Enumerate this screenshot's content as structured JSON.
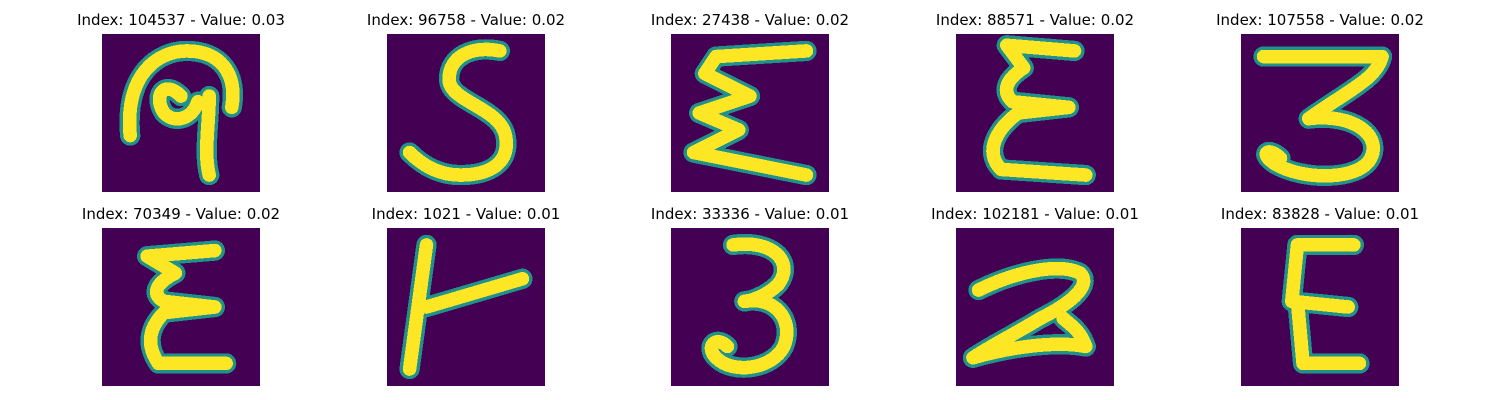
{
  "figure": {
    "background": "#ffffff",
    "colormap": "viridis",
    "colors": {
      "low": "#440154",
      "mid": "#21918c",
      "high": "#fde725"
    },
    "grid": {
      "rows": 2,
      "cols": 5
    },
    "axes": "off"
  },
  "panels": [
    {
      "title": "Index: 104537 - Value: 0.03",
      "glyph": "handwritten-p-shape"
    },
    {
      "title": "Index: 96758 - Value: 0.02",
      "glyph": "handwritten-s"
    },
    {
      "title": "Index: 27438 - Value: 0.02",
      "glyph": "handwritten-sigma"
    },
    {
      "title": "Index: 88571 - Value: 0.02",
      "glyph": "handwritten-epsilon"
    },
    {
      "title": "Index: 107558 - Value: 0.02",
      "glyph": "handwritten-3"
    },
    {
      "title": "Index: 70349 - Value: 0.02",
      "glyph": "handwritten-epsilon"
    },
    {
      "title": "Index: 1021 - Value: 0.01",
      "glyph": "handwritten-t-sideways"
    },
    {
      "title": "Index: 33336 - Value: 0.01",
      "glyph": "handwritten-3"
    },
    {
      "title": "Index: 102181 - Value: 0.01",
      "glyph": "handwritten-2"
    },
    {
      "title": "Index: 83828 - Value: 0.01",
      "glyph": "handwritten-epsilon"
    }
  ]
}
